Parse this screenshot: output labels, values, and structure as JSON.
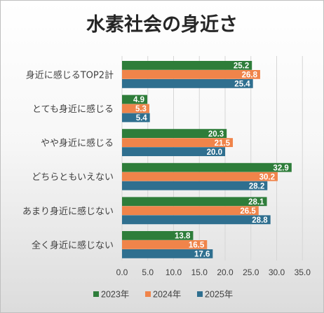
{
  "chart_data": {
    "type": "bar",
    "orientation": "horizontal",
    "title": "水素社会の身近さ",
    "categories": [
      "身近に感じるTOP2計",
      "とても身近に感じる",
      "やや身近に感じる",
      "どちらともいえない",
      "あまり身近に感じない",
      "全く身近に感じない"
    ],
    "series": [
      {
        "name": "2023年",
        "color": "#2e7d3a",
        "values": [
          25.2,
          4.9,
          20.3,
          32.9,
          28.1,
          13.8
        ]
      },
      {
        "name": "2024年",
        "color": "#f0844a",
        "values": [
          26.8,
          5.3,
          21.5,
          30.2,
          26.5,
          16.5
        ]
      },
      {
        "name": "2025年",
        "color": "#2f6f8f",
        "values": [
          25.4,
          5.4,
          20.0,
          28.2,
          28.8,
          17.6
        ]
      }
    ],
    "x_ticks": [
      "0.0",
      "5.0",
      "10.0",
      "15.0",
      "20.0",
      "25.0",
      "30.0",
      "35.0"
    ],
    "xlim": [
      0,
      35
    ],
    "grid": true,
    "legend_position": "bottom"
  }
}
